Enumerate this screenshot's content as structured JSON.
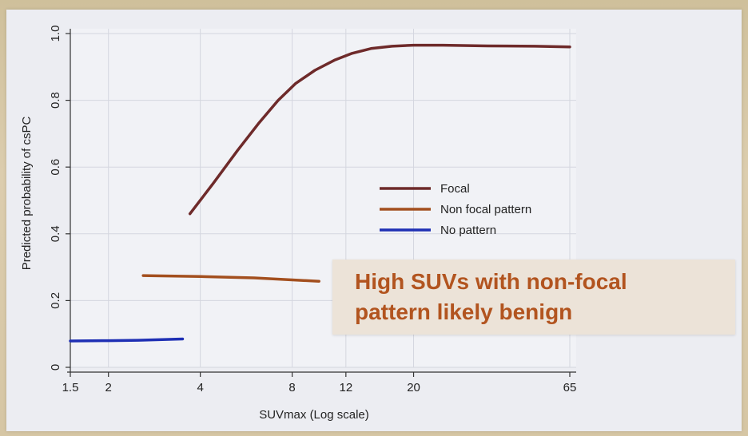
{
  "colors": {
    "focal": "#6e2a2a",
    "non_focal": "#a34f1e",
    "no_pattern": "#1e2fb4",
    "callout_text": "#b2541f",
    "callout_bg": "#ece3d8",
    "plot_bg": "#ecedf2"
  },
  "callout": {
    "line1": "High SUVs with non-focal",
    "line2": "pattern likely benign"
  },
  "chart_data": {
    "type": "line",
    "title": "",
    "xlabel": "SUVmax (Log scale)",
    "ylabel": "Predicted probability of csPC",
    "x_scale": "log",
    "x_ticks": [
      1.5,
      2,
      4,
      8,
      12,
      20,
      65
    ],
    "x_tick_labels": [
      "1.5",
      "2",
      "4",
      "8",
      "12",
      "20",
      "65"
    ],
    "y_ticks": [
      0,
      0.2,
      0.4,
      0.6,
      0.8,
      1.0
    ],
    "y_tick_labels": [
      "0",
      "0.2",
      "0.4",
      "0.6",
      "0.8",
      "1.0"
    ],
    "xlim": [
      1.5,
      65
    ],
    "ylim": [
      0,
      1.0
    ],
    "grid": true,
    "legend_position": "center-right",
    "series": [
      {
        "name": "Focal",
        "color": "#6e2a2a",
        "x": [
          3.7,
          4.4,
          5.3,
          6.2,
          7.2,
          8.2,
          9.5,
          11,
          12.5,
          14.5,
          17,
          20,
          25,
          35,
          50,
          65
        ],
        "y": [
          0.46,
          0.55,
          0.65,
          0.73,
          0.8,
          0.85,
          0.89,
          0.92,
          0.94,
          0.955,
          0.962,
          0.965,
          0.965,
          0.963,
          0.962,
          0.96
        ]
      },
      {
        "name": "Non focal pattern",
        "color": "#a34f1e",
        "x": [
          2.6,
          4,
          6,
          8,
          9.8
        ],
        "y": [
          0.275,
          0.272,
          0.268,
          0.262,
          0.258
        ]
      },
      {
        "name": "No pattern",
        "color": "#1e2fb4",
        "x": [
          1.5,
          2,
          2.5,
          3,
          3.5
        ],
        "y": [
          0.079,
          0.08,
          0.081,
          0.083,
          0.085
        ]
      }
    ]
  }
}
